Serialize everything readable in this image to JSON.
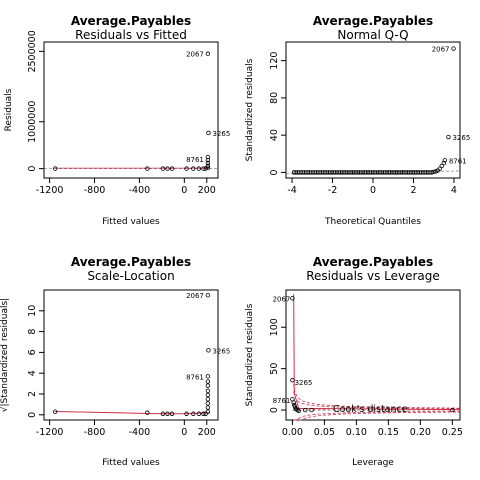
{
  "chart_data": [
    {
      "type": "scatter",
      "title": "Average.Payables",
      "subtitle": "Residuals vs Fitted",
      "xlabel": "Fitted values",
      "ylabel": "Residuals",
      "xlim": [
        -1250,
        300
      ],
      "ylim": [
        -200000,
        2700000
      ],
      "xticks": [
        -1200,
        -800,
        -400,
        0,
        200
      ],
      "xtick_labels": [
        "-1200",
        "-800",
        "-400",
        "0",
        "200"
      ],
      "yticks": [
        0,
        1000000,
        2500000
      ],
      "ytick_labels": [
        "0",
        "1000000",
        "2500000"
      ],
      "reference_line": 0,
      "labels": [
        {
          "text": "2067",
          "x": 210,
          "y": 2450000
        },
        {
          "text": "3265",
          "x": 215,
          "y": 760000
        },
        {
          "text": "8761",
          "x": 210,
          "y": 200000
        }
      ],
      "points": [
        {
          "x": -1150,
          "y": 0
        },
        {
          "x": -330,
          "y": 0
        },
        {
          "x": -190,
          "y": 0
        },
        {
          "x": -150,
          "y": 0
        },
        {
          "x": -110,
          "y": 0
        },
        {
          "x": 20,
          "y": 0
        },
        {
          "x": 80,
          "y": 0
        },
        {
          "x": 130,
          "y": 0
        },
        {
          "x": 170,
          "y": 0
        },
        {
          "x": 190,
          "y": 0
        },
        {
          "x": 210,
          "y": 2450000
        },
        {
          "x": 215,
          "y": 760000
        },
        {
          "x": 210,
          "y": 250000
        },
        {
          "x": 210,
          "y": 180000
        },
        {
          "x": 210,
          "y": 120000
        },
        {
          "x": 210,
          "y": 60000
        },
        {
          "x": 210,
          "y": 20000
        }
      ]
    },
    {
      "type": "scatter",
      "title": "Average.Payables",
      "subtitle": "Normal Q-Q",
      "xlabel": "Theoretical Quantiles",
      "ylabel": "Standardized residuals",
      "xlim": [
        -4.3,
        4.3
      ],
      "ylim": [
        -6,
        140
      ],
      "xticks": [
        -4,
        -2,
        0,
        2,
        4
      ],
      "xtick_labels": [
        "-4",
        "-2",
        "0",
        "2",
        "4"
      ],
      "yticks": [
        0,
        40,
        80,
        120
      ],
      "ytick_labels": [
        "0",
        "40",
        "80",
        "120"
      ],
      "labels": [
        {
          "text": "2067",
          "x": 3.98,
          "y": 133
        },
        {
          "text": "3265",
          "x": 3.73,
          "y": 38
        },
        {
          "text": "8761",
          "x": 3.55,
          "y": 13
        }
      ],
      "points": [
        {
          "x": -3.9,
          "y": 0
        },
        {
          "x": 3.0,
          "y": 0.5
        },
        {
          "x": 3.1,
          "y": 1
        },
        {
          "x": 3.2,
          "y": 2
        },
        {
          "x": 3.3,
          "y": 4
        },
        {
          "x": 3.4,
          "y": 7
        },
        {
          "x": 3.5,
          "y": 10
        },
        {
          "x": 3.55,
          "y": 13
        },
        {
          "x": 3.73,
          "y": 38
        },
        {
          "x": 3.98,
          "y": 133
        }
      ],
      "qq_curve": {
        "from": -3.9,
        "to": 2.9,
        "y": 0
      }
    },
    {
      "type": "scatter",
      "title": "Average.Payables",
      "subtitle": "Scale-Location",
      "xlabel": "Fitted values",
      "ylabel": "√|Standardized residuals|",
      "xlim": [
        -1250,
        300
      ],
      "ylim": [
        -0.5,
        12
      ],
      "xticks": [
        -1200,
        -800,
        -400,
        0,
        200
      ],
      "xtick_labels": [
        "-1200",
        "-800",
        "-400",
        "0",
        "200"
      ],
      "yticks": [
        0,
        2,
        4,
        6,
        8,
        10
      ],
      "ytick_labels": [
        "0",
        "2",
        "4",
        "6",
        "8",
        "10"
      ],
      "labels": [
        {
          "text": "2067",
          "x": 210,
          "y": 11.5
        },
        {
          "text": "3265",
          "x": 215,
          "y": 6.2
        },
        {
          "text": "8761",
          "x": 210,
          "y": 3.7
        }
      ],
      "points": [
        {
          "x": -1150,
          "y": 0.3
        },
        {
          "x": -330,
          "y": 0.2
        },
        {
          "x": -190,
          "y": 0.1
        },
        {
          "x": -150,
          "y": 0.1
        },
        {
          "x": -110,
          "y": 0.1
        },
        {
          "x": 20,
          "y": 0.1
        },
        {
          "x": 80,
          "y": 0.1
        },
        {
          "x": 130,
          "y": 0.1
        },
        {
          "x": 170,
          "y": 0.1
        },
        {
          "x": 190,
          "y": 0.1
        },
        {
          "x": 210,
          "y": 11.5
        },
        {
          "x": 215,
          "y": 6.2
        },
        {
          "x": 210,
          "y": 3.7
        },
        {
          "x": 210,
          "y": 3.2
        },
        {
          "x": 210,
          "y": 2.8
        },
        {
          "x": 210,
          "y": 2.3
        },
        {
          "x": 210,
          "y": 1.9
        },
        {
          "x": 210,
          "y": 1.5
        },
        {
          "x": 210,
          "y": 1.1
        },
        {
          "x": 210,
          "y": 0.7
        },
        {
          "x": 210,
          "y": 0.3
        }
      ],
      "smooth_line": [
        {
          "x": -1150,
          "y": 0.32
        },
        {
          "x": -600,
          "y": 0.2
        },
        {
          "x": -300,
          "y": 0.12
        },
        {
          "x": 0,
          "y": 0.1
        },
        {
          "x": 230,
          "y": 0.2
        }
      ]
    },
    {
      "type": "scatter",
      "title": "Average.Payables",
      "subtitle": "Residuals vs Leverage",
      "xlabel": "Leverage",
      "ylabel": "Standardized residuals",
      "xlim": [
        -0.01,
        0.262
      ],
      "ylim": [
        -12,
        145
      ],
      "xticks": [
        0,
        0.05,
        0.1,
        0.15,
        0.2,
        0.25
      ],
      "xtick_labels": [
        "0.00",
        "0.05",
        "0.10",
        "0.15",
        "0.20",
        "0.25"
      ],
      "yticks": [
        0,
        50,
        100
      ],
      "ytick_labels": [
        "0",
        "50",
        "100"
      ],
      "legend_text": "Cook's distance",
      "legend_position": "bottom",
      "labels": [
        {
          "text": "2067",
          "x": 0.0,
          "y": 135
        },
        {
          "text": "3265",
          "x": 0.0,
          "y": 35
        },
        {
          "text": "8761",
          "x": 0.0,
          "y": 12
        }
      ],
      "points": [
        {
          "x": 0.0,
          "y": 135
        },
        {
          "x": 0.0,
          "y": 36
        },
        {
          "x": 0.0,
          "y": 13
        },
        {
          "x": 0.002,
          "y": 9
        },
        {
          "x": 0.003,
          "y": 6
        },
        {
          "x": 0.004,
          "y": 4
        },
        {
          "x": 0.005,
          "y": 2
        },
        {
          "x": 0.006,
          "y": 1
        },
        {
          "x": 0.008,
          "y": 0
        },
        {
          "x": 0.01,
          "y": -1
        },
        {
          "x": 0.02,
          "y": 0
        },
        {
          "x": 0.03,
          "y": 0
        },
        {
          "x": 0.25,
          "y": 0
        }
      ],
      "cooks_contours": [
        0.5,
        1
      ]
    }
  ]
}
